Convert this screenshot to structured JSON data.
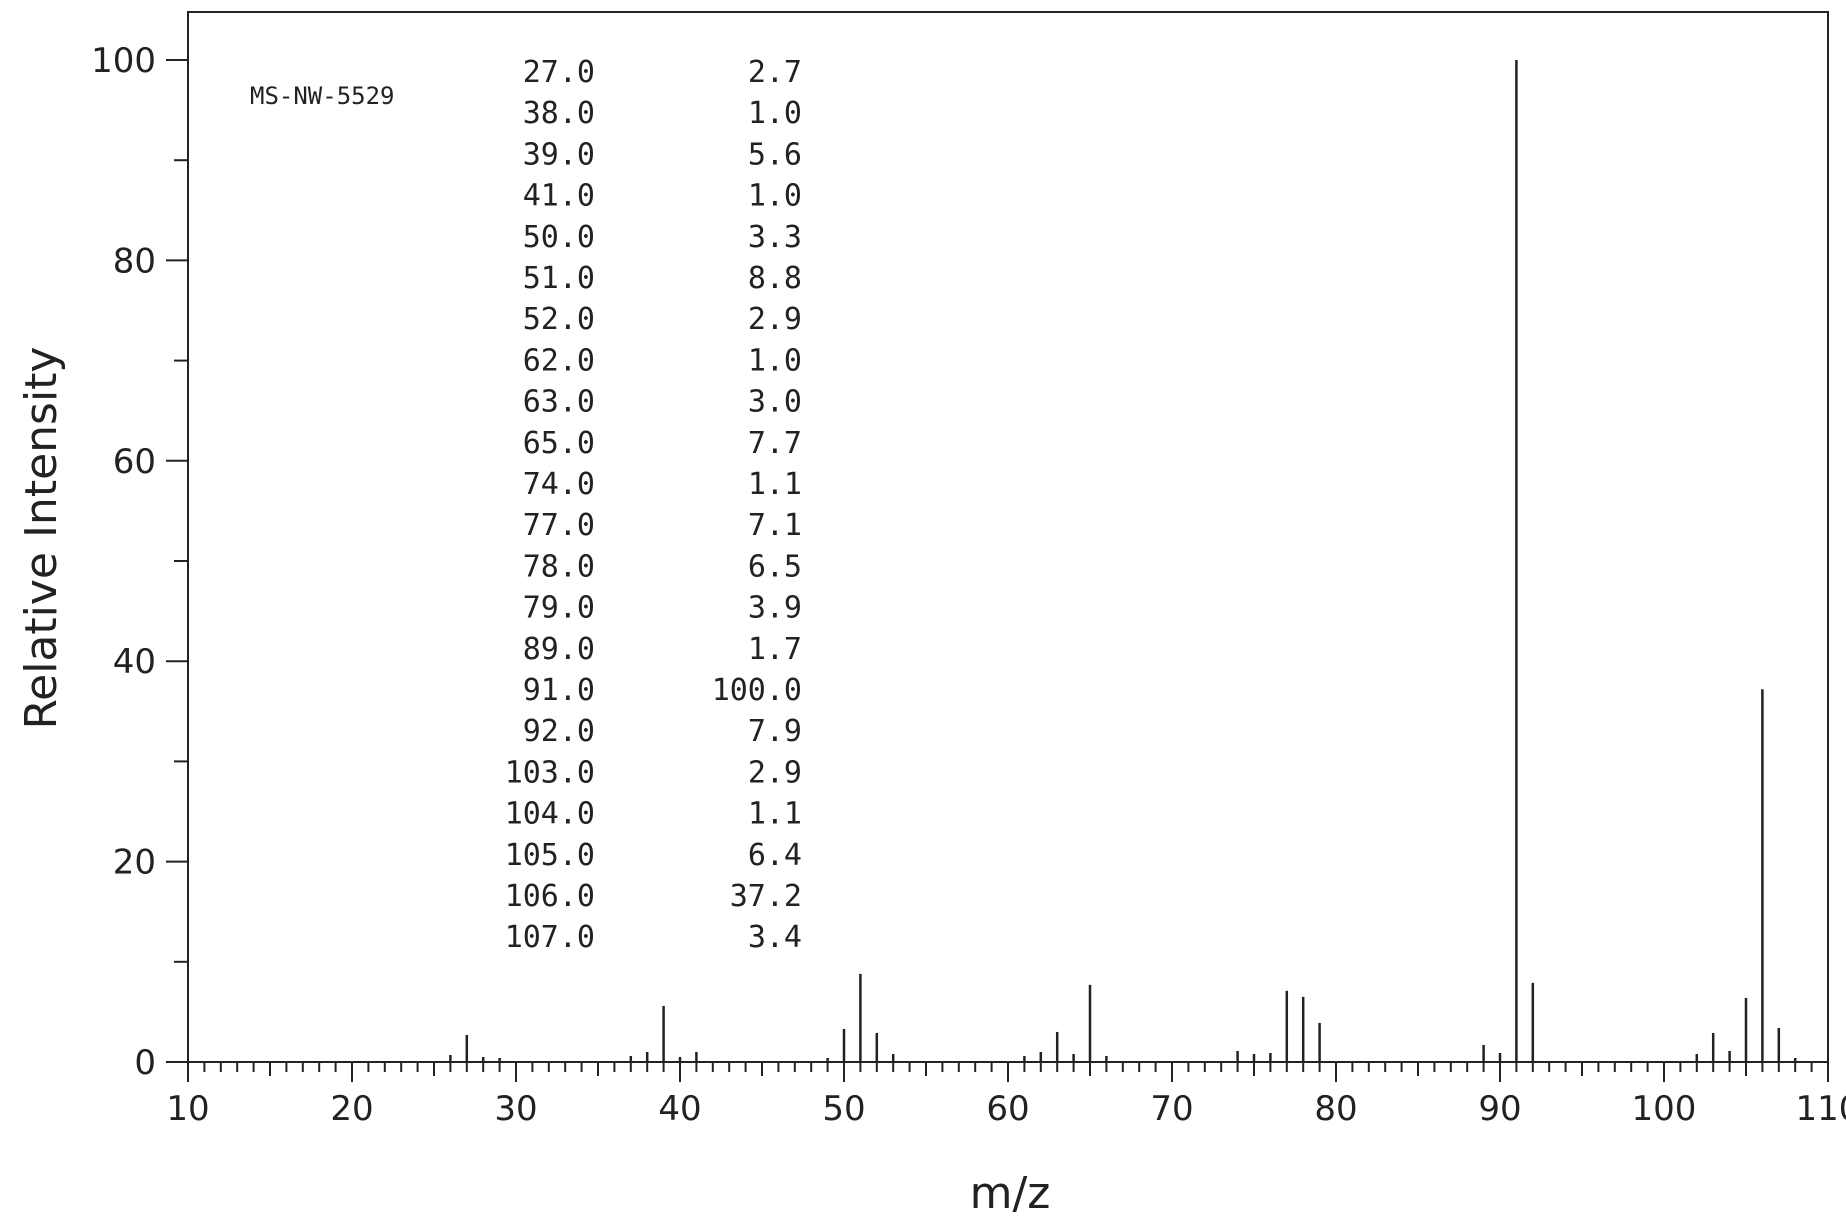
{
  "chart_data": {
    "type": "bar",
    "spectrum_id": "MS-NW-5529",
    "xlabel": "m/z",
    "ylabel": "Relative Intensity",
    "xlim": [
      10,
      110
    ],
    "ylim": [
      0,
      100
    ],
    "x_ticks": [
      "10",
      "20",
      "30",
      "40",
      "50",
      "60",
      "70",
      "80",
      "90",
      "100",
      "110"
    ],
    "y_ticks": [
      "0",
      "20",
      "40",
      "60",
      "80",
      "100"
    ],
    "grid": false,
    "peaks": [
      {
        "mz": 26,
        "intensity": 0.7
      },
      {
        "mz": 27,
        "intensity": 2.7
      },
      {
        "mz": 28,
        "intensity": 0.5
      },
      {
        "mz": 29,
        "intensity": 0.4
      },
      {
        "mz": 37,
        "intensity": 0.6
      },
      {
        "mz": 38,
        "intensity": 1.0
      },
      {
        "mz": 39,
        "intensity": 5.6
      },
      {
        "mz": 40,
        "intensity": 0.5
      },
      {
        "mz": 41,
        "intensity": 1.0
      },
      {
        "mz": 49,
        "intensity": 0.4
      },
      {
        "mz": 50,
        "intensity": 3.3
      },
      {
        "mz": 51,
        "intensity": 8.8
      },
      {
        "mz": 52,
        "intensity": 2.9
      },
      {
        "mz": 53,
        "intensity": 0.8
      },
      {
        "mz": 61,
        "intensity": 0.6
      },
      {
        "mz": 62,
        "intensity": 1.0
      },
      {
        "mz": 63,
        "intensity": 3.0
      },
      {
        "mz": 64,
        "intensity": 0.8
      },
      {
        "mz": 65,
        "intensity": 7.7
      },
      {
        "mz": 66,
        "intensity": 0.6
      },
      {
        "mz": 74,
        "intensity": 1.1
      },
      {
        "mz": 75,
        "intensity": 0.8
      },
      {
        "mz": 76,
        "intensity": 0.9
      },
      {
        "mz": 77,
        "intensity": 7.1
      },
      {
        "mz": 78,
        "intensity": 6.5
      },
      {
        "mz": 79,
        "intensity": 3.9
      },
      {
        "mz": 89,
        "intensity": 1.7
      },
      {
        "mz": 90,
        "intensity": 0.9
      },
      {
        "mz": 91,
        "intensity": 100.0
      },
      {
        "mz": 92,
        "intensity": 7.9
      },
      {
        "mz": 102,
        "intensity": 0.8
      },
      {
        "mz": 103,
        "intensity": 2.9
      },
      {
        "mz": 104,
        "intensity": 1.1
      },
      {
        "mz": 105,
        "intensity": 6.4
      },
      {
        "mz": 106,
        "intensity": 37.2
      },
      {
        "mz": 107,
        "intensity": 3.4
      },
      {
        "mz": 108,
        "intensity": 0.4
      }
    ],
    "peak_table": [
      {
        "mz": "27.0",
        "intensity": "2.7"
      },
      {
        "mz": "38.0",
        "intensity": "1.0"
      },
      {
        "mz": "39.0",
        "intensity": "5.6"
      },
      {
        "mz": "41.0",
        "intensity": "1.0"
      },
      {
        "mz": "50.0",
        "intensity": "3.3"
      },
      {
        "mz": "51.0",
        "intensity": "8.8"
      },
      {
        "mz": "52.0",
        "intensity": "2.9"
      },
      {
        "mz": "62.0",
        "intensity": "1.0"
      },
      {
        "mz": "63.0",
        "intensity": "3.0"
      },
      {
        "mz": "65.0",
        "intensity": "7.7"
      },
      {
        "mz": "74.0",
        "intensity": "1.1"
      },
      {
        "mz": "77.0",
        "intensity": "7.1"
      },
      {
        "mz": "78.0",
        "intensity": "6.5"
      },
      {
        "mz": "79.0",
        "intensity": "3.9"
      },
      {
        "mz": "89.0",
        "intensity": "1.7"
      },
      {
        "mz": "91.0",
        "intensity": "100.0"
      },
      {
        "mz": "92.0",
        "intensity": "7.9"
      },
      {
        "mz": "103.0",
        "intensity": "2.9"
      },
      {
        "mz": "104.0",
        "intensity": "1.1"
      },
      {
        "mz": "105.0",
        "intensity": "6.4"
      },
      {
        "mz": "106.0",
        "intensity": "37.2"
      },
      {
        "mz": "107.0",
        "intensity": "3.4"
      }
    ]
  }
}
